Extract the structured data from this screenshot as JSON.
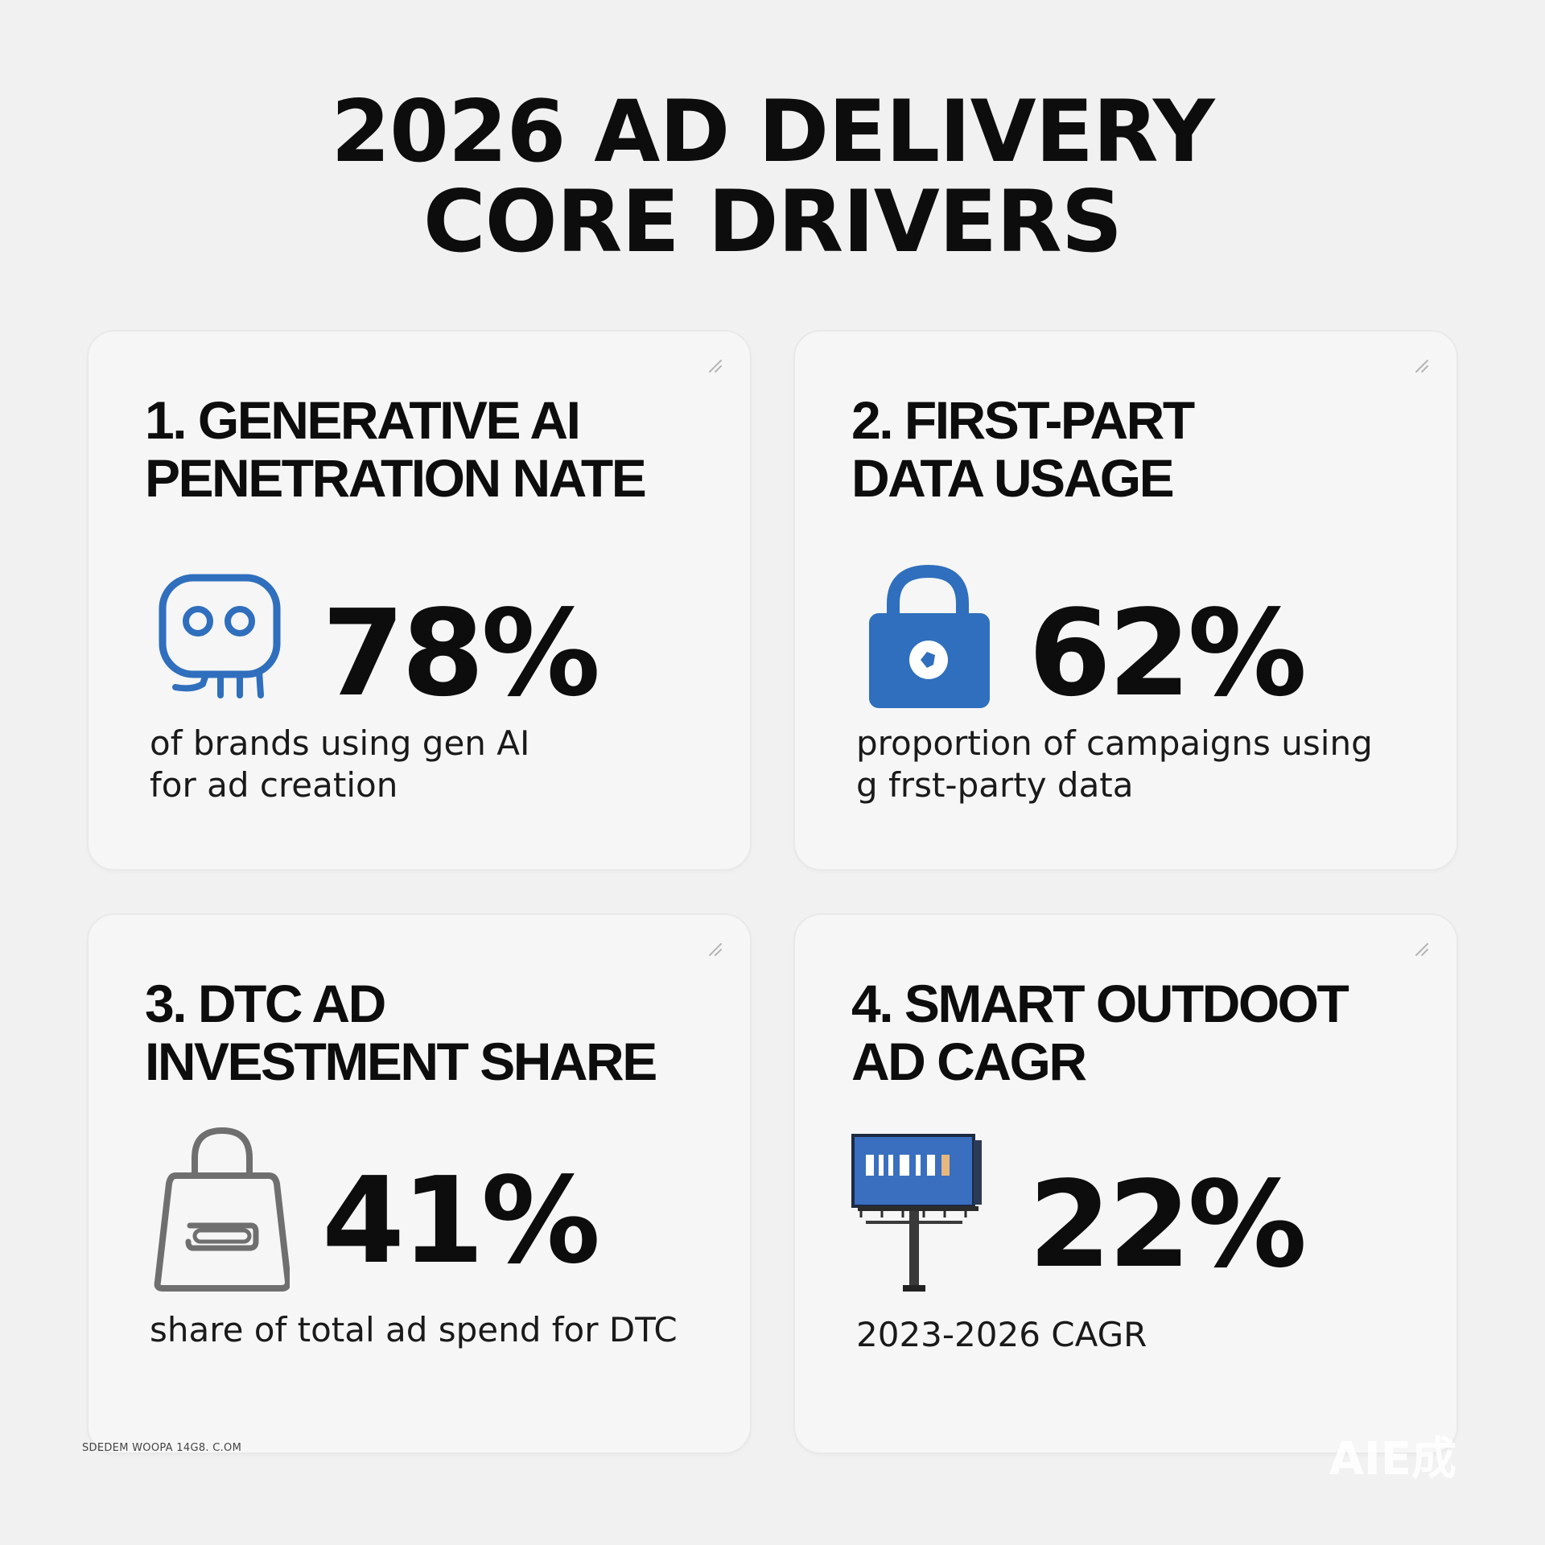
{
  "title": {
    "line1": "2026 AD DELIVERY",
    "line2": "CORE DRIVERS"
  },
  "cards": [
    {
      "title_line1": "1. GENERATIVE AI",
      "title_line2": "PENETRATION NATE",
      "icon": "robot-icon",
      "stat": "78%",
      "desc_line1": "of brands using gen AI",
      "desc_line2": "for ad creation"
    },
    {
      "title_line1": "2. FIRST-PART",
      "title_line2": "DATA USAGE",
      "icon": "lock-icon",
      "stat": "62%",
      "desc_line1": "proportion of campaigns using",
      "desc_line2": "g frst-party data"
    },
    {
      "title_line1": "3. DTC AD",
      "title_line2": "INVESTMENT SHARE",
      "icon": "shopping-bag-icon",
      "stat": "41%",
      "desc_line1": "share of total ad spend for DTC",
      "desc_line2": ""
    },
    {
      "title_line1": "4. SMART OUTDOOT",
      "title_line2": "AD CAGR",
      "icon": "billboard-icon",
      "stat": "22%",
      "desc_line1": "2023-2026 CAGR",
      "desc_line2": ""
    }
  ],
  "colors": {
    "accent_blue": "#2f6fbd",
    "icon_gray": "#6f6f6f",
    "text": "#0d0d0d",
    "background": "#f1f1f1",
    "card_background": "#f6f6f6"
  },
  "footer": "SDEDEM WOOPA 14G8. C.OM",
  "watermark": "AIE成"
}
